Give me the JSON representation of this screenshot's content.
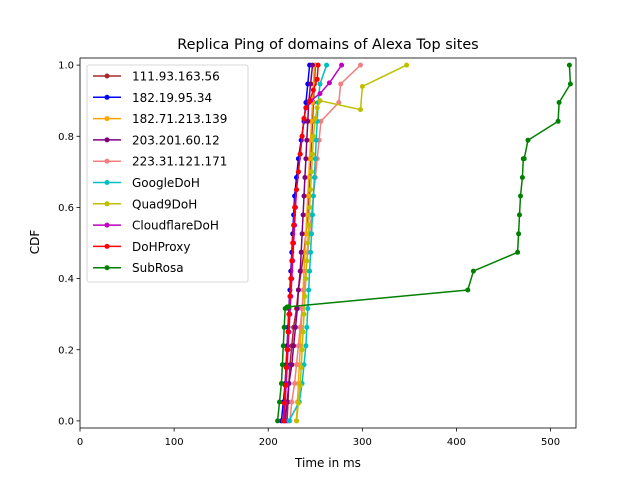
{
  "chart_data": {
    "type": "line",
    "title": "Replica Ping of domains of Alexa Top sites",
    "xlabel": "Time in ms",
    "ylabel": "CDF",
    "xlim": [
      0,
      527
    ],
    "ylim": [
      -0.02,
      1.02
    ],
    "xticks": [
      0,
      100,
      200,
      300,
      400,
      500
    ],
    "yticks": [
      0.0,
      0.2,
      0.4,
      0.6,
      0.8,
      1.0
    ],
    "xtick_labels": [
      "0",
      "100",
      "200",
      "300",
      "400",
      "500"
    ],
    "ytick_labels": [
      "0.0",
      "0.2",
      "0.4",
      "0.6",
      "0.8",
      "1.0"
    ],
    "legend_position": "upper-left",
    "grid": false,
    "series": [
      {
        "name": "111.93.163.56",
        "color": "#a52a2a",
        "x": [
          220,
          221,
          222,
          223,
          225,
          227,
          230,
          232,
          235,
          238,
          240,
          242,
          243,
          244,
          245,
          246,
          247,
          248,
          249,
          250
        ],
        "y": [
          0.0,
          0.053,
          0.105,
          0.158,
          0.211,
          0.263,
          0.316,
          0.368,
          0.421,
          0.474,
          0.526,
          0.579,
          0.632,
          0.684,
          0.737,
          0.789,
          0.842,
          0.895,
          0.947,
          1.0
        ]
      },
      {
        "name": "182.19.95.34",
        "color": "#0000ff",
        "x": [
          214,
          216,
          218,
          219,
          220,
          221,
          222,
          223,
          224,
          225,
          226,
          227,
          228,
          230,
          232,
          235,
          238,
          240,
          242,
          244
        ],
        "y": [
          0.0,
          0.053,
          0.105,
          0.158,
          0.211,
          0.263,
          0.316,
          0.368,
          0.421,
          0.474,
          0.526,
          0.579,
          0.632,
          0.684,
          0.737,
          0.789,
          0.842,
          0.895,
          0.947,
          1.0
        ]
      },
      {
        "name": "182.71.213.139",
        "color": "#ffa500",
        "x": [
          230,
          231,
          232,
          233,
          234,
          235,
          236,
          237,
          238,
          239,
          240,
          241,
          242,
          243,
          244,
          245,
          246,
          247,
          248,
          249
        ],
        "y": [
          0.0,
          0.053,
          0.105,
          0.158,
          0.211,
          0.263,
          0.316,
          0.368,
          0.421,
          0.474,
          0.526,
          0.579,
          0.632,
          0.684,
          0.737,
          0.789,
          0.842,
          0.895,
          0.947,
          1.0
        ]
      },
      {
        "name": "203.201.60.12",
        "color": "#800080",
        "x": [
          218,
          220,
          222,
          225,
          227,
          229,
          231,
          232,
          234,
          235,
          236,
          237,
          238,
          239,
          240,
          241,
          242,
          243,
          245,
          247
        ],
        "y": [
          0.0,
          0.053,
          0.105,
          0.158,
          0.211,
          0.263,
          0.316,
          0.368,
          0.421,
          0.474,
          0.526,
          0.579,
          0.632,
          0.684,
          0.737,
          0.789,
          0.842,
          0.895,
          0.947,
          1.0
        ]
      },
      {
        "name": "223.31.121.171",
        "color": "#f08080",
        "x": [
          223,
          225,
          228,
          230,
          232,
          234,
          236,
          238,
          240,
          242,
          244,
          246,
          248,
          250,
          252,
          254,
          256,
          275,
          277,
          298
        ],
        "y": [
          0.0,
          0.053,
          0.105,
          0.158,
          0.211,
          0.263,
          0.316,
          0.368,
          0.421,
          0.474,
          0.526,
          0.579,
          0.632,
          0.684,
          0.737,
          0.789,
          0.842,
          0.895,
          0.947,
          1.0
        ]
      },
      {
        "name": "GoogleDoH",
        "color": "#00bfbf",
        "x": [
          222,
          233,
          236,
          238,
          240,
          241,
          242,
          243,
          244,
          245,
          246,
          247,
          248,
          249,
          250,
          251,
          252,
          253,
          255,
          262
        ],
        "y": [
          0.0,
          0.053,
          0.105,
          0.158,
          0.211,
          0.263,
          0.316,
          0.368,
          0.421,
          0.474,
          0.526,
          0.579,
          0.632,
          0.684,
          0.737,
          0.789,
          0.842,
          0.895,
          0.947,
          1.0
        ]
      },
      {
        "name": "Quad9DoH",
        "color": "#bfbf00",
        "x": [
          230,
          232,
          234,
          235,
          236,
          237,
          238,
          239,
          240,
          241,
          242,
          243,
          244,
          245,
          246,
          247,
          248,
          250,
          252,
          255,
          298,
          300,
          347
        ],
        "y": [
          0.0,
          0.05,
          0.1,
          0.15,
          0.2,
          0.25,
          0.3,
          0.35,
          0.4,
          0.45,
          0.5,
          0.55,
          0.6,
          0.65,
          0.7,
          0.75,
          0.8,
          0.85,
          0.88,
          0.9,
          0.875,
          0.94,
          1.0
        ]
      },
      {
        "name": "CloudflareDoH",
        "color": "#bf00bf",
        "x": [
          217,
          218,
          219,
          220,
          221,
          222,
          223,
          224,
          225,
          226,
          227,
          228,
          229,
          230,
          232,
          234,
          236,
          238,
          240,
          245,
          255,
          265,
          278
        ],
        "y": [
          0.0,
          0.05,
          0.1,
          0.15,
          0.2,
          0.25,
          0.3,
          0.35,
          0.4,
          0.45,
          0.5,
          0.55,
          0.6,
          0.65,
          0.7,
          0.75,
          0.8,
          0.85,
          0.88,
          0.9,
          0.92,
          0.95,
          1.0
        ]
      },
      {
        "name": "DoHProxy",
        "color": "#ff0000",
        "x": [
          216,
          217,
          218,
          219,
          220,
          221,
          222,
          223,
          224,
          225,
          226,
          227,
          228,
          230,
          232,
          234,
          236,
          238,
          240,
          244,
          248,
          252,
          253
        ],
        "y": [
          0.0,
          0.05,
          0.1,
          0.15,
          0.2,
          0.25,
          0.3,
          0.35,
          0.4,
          0.45,
          0.5,
          0.55,
          0.6,
          0.65,
          0.7,
          0.75,
          0.8,
          0.85,
          0.88,
          0.9,
          0.93,
          0.96,
          1.0
        ]
      },
      {
        "name": "SubRosa",
        "color": "#008000",
        "x": [
          210,
          212,
          214,
          215,
          216,
          217,
          218,
          220,
          222,
          412,
          418,
          465,
          466,
          467,
          468,
          470,
          471,
          472,
          476,
          508,
          509,
          521,
          520
        ],
        "y": [
          0.0,
          0.053,
          0.105,
          0.158,
          0.211,
          0.263,
          0.316,
          0.32,
          0.321,
          0.368,
          0.421,
          0.474,
          0.526,
          0.579,
          0.632,
          0.684,
          0.737,
          0.737,
          0.789,
          0.842,
          0.895,
          0.947,
          1.0
        ]
      }
    ]
  }
}
